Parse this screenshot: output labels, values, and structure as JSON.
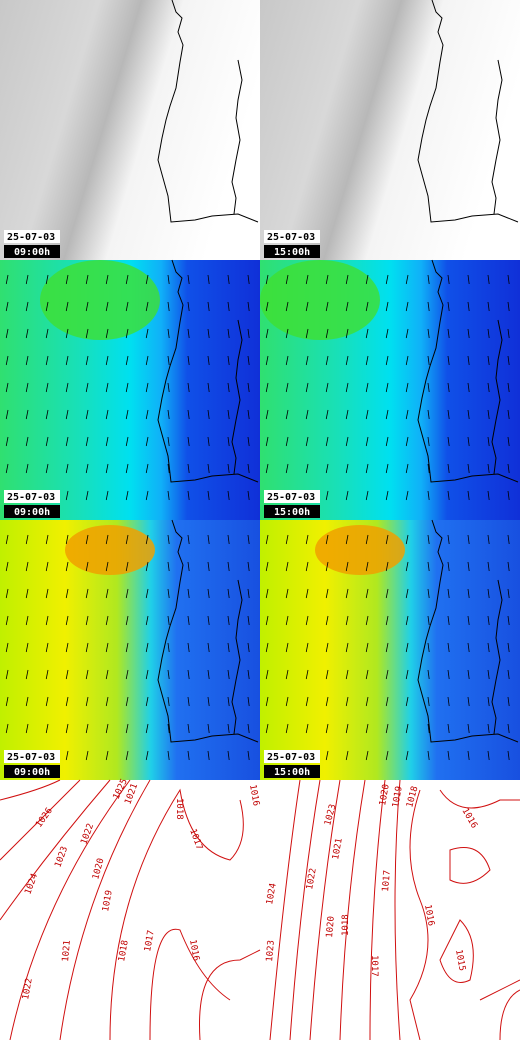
{
  "panels": [
    {
      "date": "25-07-03",
      "time": "09:00h"
    },
    {
      "date": "25-07-03",
      "time": "15:00h"
    },
    {
      "date": "25-07-03",
      "time": "09:00h"
    },
    {
      "date": "25-07-03",
      "time": "15:00h"
    },
    {
      "date": "25-07-03",
      "time": "09:00h"
    },
    {
      "date": "25-07-03",
      "time": "15:00h"
    }
  ],
  "pressure_maps": [
    {
      "isobar_labels": [
        "1026",
        "1025",
        "1023",
        "1024",
        "1022",
        "1021",
        "1020",
        "1019",
        "1018",
        "1017",
        "1016",
        "1022",
        "1021",
        "1018",
        "1017",
        "1016"
      ]
    },
    {
      "isobar_labels": [
        "1023",
        "1022",
        "1021",
        "1020",
        "1019",
        "1018",
        "1017",
        "1016",
        "1024",
        "1023",
        "1020",
        "1018",
        "1017",
        "1015",
        "1016"
      ]
    }
  ]
}
